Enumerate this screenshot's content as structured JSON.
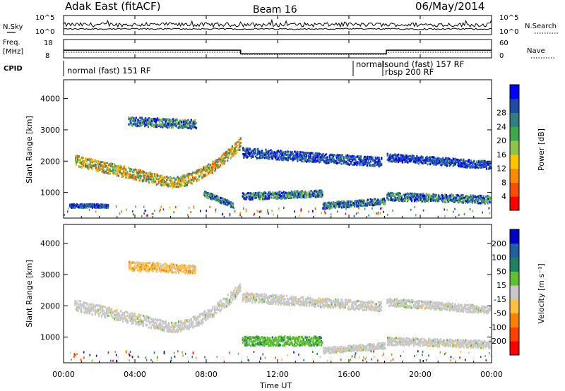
{
  "header": {
    "radar": "Adak East (fitACF)",
    "beam": "Beam 16",
    "date": "06/May/2014"
  },
  "summary_panel": {
    "nsky_label": "N.Sky",
    "nsky_ticks": [
      "10^5",
      "10^0"
    ],
    "nsearch_label": "N.Search",
    "nsearch_ticks": [
      "10^5",
      "10^0"
    ],
    "freq_label": "Freq.",
    "freq_unit": "[MHz]",
    "freq_ticks": [
      "18",
      "8"
    ],
    "nave_label": "Nave",
    "nave_ticks": [
      "60",
      "0"
    ],
    "cpid_label": "CPID",
    "cpid_segments": [
      {
        "label": "normal (fast) 151 RF",
        "start_h": 0,
        "end_h": 16.5
      },
      {
        "label": "normalsound (fast) 157 RF",
        "start_h": 16.5,
        "end_h": 18.1
      },
      {
        "label": "rbsp 200 RF",
        "start_h": 18.1,
        "end_h": 24
      }
    ],
    "freq_series": [
      [
        0,
        12.2
      ],
      [
        9.93,
        12.2
      ],
      [
        9.93,
        10.2
      ],
      [
        18.1,
        10.2
      ],
      [
        18.1,
        12.2
      ],
      [
        24,
        12.2
      ]
    ]
  },
  "chart_data": [
    {
      "type": "heatmap",
      "panel": "power",
      "ylabel": "Slant Range [km]",
      "xlabel": "",
      "xlim": [
        0,
        24
      ],
      "ylim": [
        180,
        4600
      ],
      "yticks": [
        "1000",
        "2000",
        "3000",
        "4000"
      ],
      "colorbar": {
        "label": "Power [dB]",
        "ticks": [
          "4",
          "8",
          "12",
          "16",
          "20",
          "24",
          "28"
        ],
        "colors": [
          "#0000ff",
          "#214ba8",
          "#2f8080",
          "#3ea94a",
          "#8fc44a",
          "#ffc400",
          "#ff8a00",
          "#ff4d00",
          "#ff0000"
        ]
      },
      "echo_regions": [
        {
          "start_h": 0.6,
          "end_h": 9.9,
          "center_km_start": 2050,
          "center_km_min": 1350,
          "min_h": 6.0,
          "center_km_end": 2600,
          "width_km": 350,
          "level": "strong"
        },
        {
          "start_h": 3.6,
          "end_h": 7.4,
          "center_km_start": 3300,
          "center_km_end": 3200,
          "width_km": 280,
          "level": "moderate"
        },
        {
          "start_h": 7.8,
          "end_h": 9.5,
          "center_km_start": 1000,
          "center_km_end": 620,
          "width_km": 180,
          "level": "moderate"
        },
        {
          "start_h": 10.0,
          "end_h": 14.5,
          "center_km_start": 900,
          "center_km_end": 1000,
          "width_km": 220,
          "level": "moderate"
        },
        {
          "start_h": 10.0,
          "end_h": 17.8,
          "center_km_start": 2300,
          "center_km_end": 2000,
          "width_km": 300,
          "level": "weak"
        },
        {
          "start_h": 14.5,
          "end_h": 18.0,
          "center_km_start": 600,
          "center_km_end": 750,
          "width_km": 200,
          "level": "moderate"
        },
        {
          "start_h": 18.1,
          "end_h": 23.9,
          "center_km_start": 2150,
          "center_km_end": 1900,
          "width_km": 250,
          "level": "weak"
        },
        {
          "start_h": 18.1,
          "end_h": 23.9,
          "center_km_start": 900,
          "center_km_end": 800,
          "width_km": 250,
          "level": "moderate"
        },
        {
          "start_h": 0.3,
          "end_h": 2.5,
          "center_km_start": 600,
          "center_km_end": 600,
          "width_km": 120,
          "level": "weak"
        }
      ]
    },
    {
      "type": "heatmap",
      "panel": "velocity",
      "ylabel": "Slant Range [km]",
      "xlabel": "Time UT",
      "xlim": [
        0,
        24
      ],
      "ylim": [
        180,
        4600
      ],
      "xticks": [
        "00:00",
        "04:00",
        "08:00",
        "12:00",
        "16:00",
        "20:00",
        "00:00"
      ],
      "yticks": [
        "1000",
        "2000",
        "3000",
        "4000"
      ],
      "colorbar": {
        "label": "Velocity [m s⁻¹]",
        "ticks": [
          "200",
          "100",
          "50",
          "15",
          "-15",
          "-50",
          "-100",
          "-200"
        ],
        "colors": [
          "#0000c8",
          "#2060a0",
          "#208060",
          "#60c030",
          "#c8c8c8",
          "#ffc040",
          "#ff8000",
          "#ff4000",
          "#ff0000"
        ]
      },
      "echo_regions": [
        {
          "start_h": 0.6,
          "end_h": 9.9,
          "center_km_start": 2050,
          "center_km_min": 1350,
          "min_h": 6.0,
          "center_km_end": 2600,
          "width_km": 350,
          "level": "gray"
        },
        {
          "start_h": 3.6,
          "end_h": 7.4,
          "center_km_start": 3300,
          "center_km_end": 3200,
          "width_km": 280,
          "level": "orange"
        },
        {
          "start_h": 10.0,
          "end_h": 14.5,
          "center_km_start": 900,
          "center_km_end": 900,
          "width_km": 300,
          "level": "green"
        },
        {
          "start_h": 10.0,
          "end_h": 17.8,
          "center_km_start": 2300,
          "center_km_end": 2000,
          "width_km": 300,
          "level": "gray"
        },
        {
          "start_h": 14.5,
          "end_h": 18.0,
          "center_km_start": 600,
          "center_km_end": 750,
          "width_km": 200,
          "level": "gray"
        },
        {
          "start_h": 18.1,
          "end_h": 23.9,
          "center_km_start": 2150,
          "center_km_end": 1900,
          "width_km": 250,
          "level": "gray"
        },
        {
          "start_h": 18.1,
          "end_h": 23.9,
          "center_km_start": 900,
          "center_km_end": 800,
          "width_km": 250,
          "level": "gray"
        }
      ]
    }
  ]
}
